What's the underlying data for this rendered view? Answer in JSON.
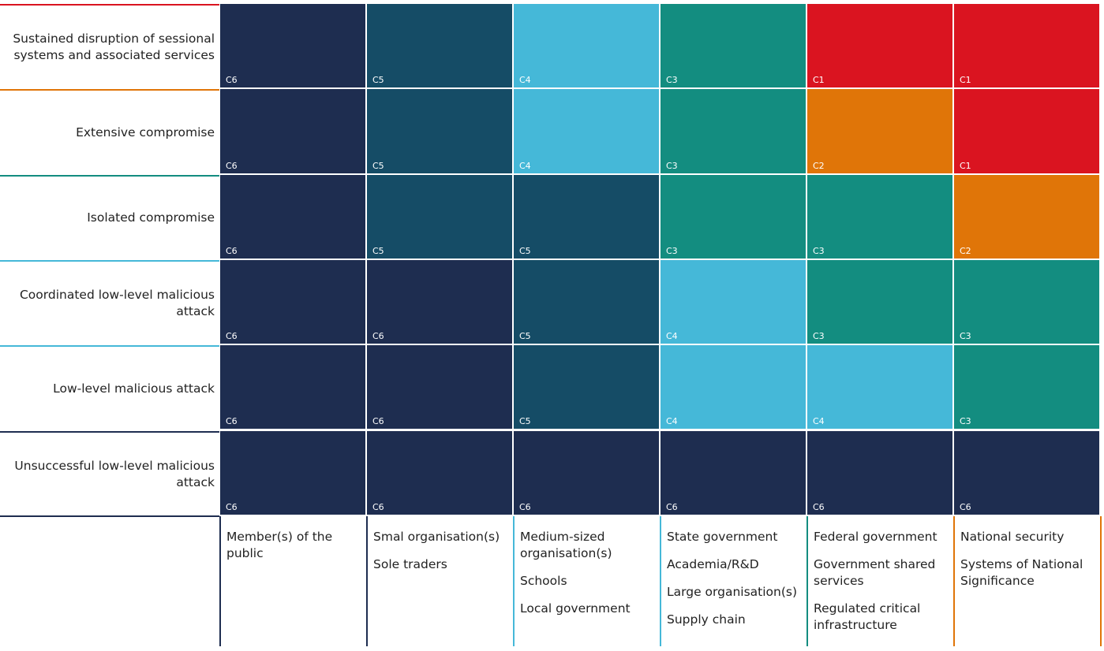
{
  "colors": {
    "C1": "#da1420",
    "C2": "#e07508",
    "C3": "#138d80",
    "C4": "#45b8d8",
    "C5": "#154c66",
    "C6": "#1e2d50"
  },
  "rows": [
    {
      "label": "Sustained disruption of sessional systems and associated services",
      "line_color": "#da1420",
      "cells": [
        "C6",
        "C5",
        "C4",
        "C3",
        "C1",
        "C1"
      ]
    },
    {
      "label": "Extensive compromise",
      "line_color": "#e07508",
      "cells": [
        "C6",
        "C5",
        "C4",
        "C3",
        "C2",
        "C1"
      ]
    },
    {
      "label": "Isolated compromise",
      "line_color": "#138d80",
      "cells": [
        "C6",
        "C5",
        "C5",
        "C3",
        "C3",
        "C2"
      ]
    },
    {
      "label": "Coordinated low-level malicious attack",
      "line_color": "#45b8d8",
      "cells": [
        "C6",
        "C6",
        "C5",
        "C4",
        "C3",
        "C3"
      ]
    },
    {
      "label": "Low-level malicious attack",
      "line_color": "#45b8d8",
      "cells": [
        "C6",
        "C6",
        "C5",
        "C4",
        "C4",
        "C3"
      ]
    },
    {
      "label": "Unsuccessful low-level malicious attack",
      "line_color": "#1e2d50",
      "cells": [
        "C6",
        "C6",
        "C6",
        "C6",
        "C6",
        "C6"
      ]
    }
  ],
  "columns": [
    {
      "color": "#1e2d50",
      "items": [
        "Member(s) of the public"
      ]
    },
    {
      "color": "#1e2d50",
      "items": [
        "Smal organisation(s)",
        "Sole traders"
      ]
    },
    {
      "color": "#45b8d8",
      "items": [
        "Medium-sized organisation(s)",
        "Schools",
        "Local government"
      ]
    },
    {
      "color": "#45b8d8",
      "items": [
        "State government",
        "Academia/R&D",
        "Large organisation(s)",
        "Supply chain"
      ]
    },
    {
      "color": "#138d80",
      "items": [
        "Federal government",
        "Government shared services",
        "Regulated critical infrastructure"
      ]
    },
    {
      "color": "#e07508",
      "items": [
        "National security",
        "Systems of National Significance"
      ]
    }
  ]
}
